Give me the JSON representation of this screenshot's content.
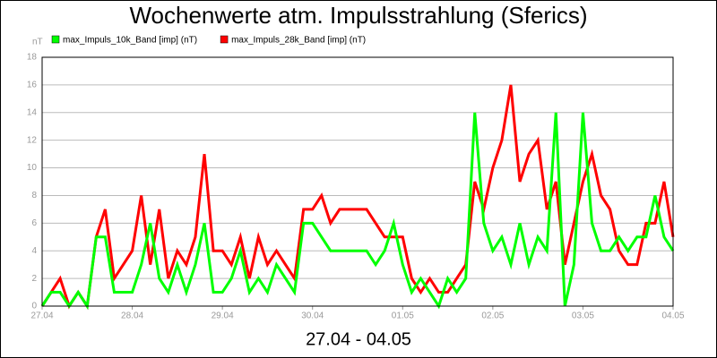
{
  "chart_data": {
    "type": "line",
    "title": "Wochenwerte atm. Impulsstrahlung (Sferics)",
    "x_label": "27.04 - 04.05",
    "y_label": "nT",
    "x": [
      0,
      0.1,
      0.2,
      0.3,
      0.4,
      0.5,
      0.6,
      0.7,
      0.8,
      0.9,
      1,
      1.1,
      1.2,
      1.3,
      1.4,
      1.5,
      1.6,
      1.7,
      1.8,
      1.9,
      2,
      2.1,
      2.2,
      2.3,
      2.4,
      2.5,
      2.6,
      2.7,
      2.8,
      2.9,
      3,
      3.1,
      3.2,
      3.3,
      3.4,
      3.5,
      3.6,
      3.7,
      3.8,
      3.9,
      4,
      4.1,
      4.2,
      4.3,
      4.4,
      4.5,
      4.6,
      4.7,
      4.8,
      4.9,
      5,
      5.1,
      5.2,
      5.3,
      5.4,
      5.5,
      5.6,
      5.7,
      5.8,
      5.9,
      6,
      6.1,
      6.2,
      6.3,
      6.4,
      6.5,
      6.6,
      6.7,
      6.8,
      6.9,
      7
    ],
    "series": [
      {
        "name": "max_Impuls_28k_Band [imp] (nT)",
        "color": "#ff0000",
        "values": [
          0,
          1,
          2,
          0,
          1,
          0,
          5,
          7,
          2,
          3,
          4,
          8,
          3,
          7,
          2,
          4,
          3,
          5,
          11,
          4,
          4,
          3,
          5,
          2,
          5,
          3,
          4,
          3,
          2,
          7,
          7,
          8,
          6,
          7,
          7,
          7,
          7,
          6,
          5,
          5,
          5,
          2,
          1,
          2,
          1,
          1,
          2,
          3,
          9,
          7,
          10,
          12,
          16,
          9,
          11,
          12,
          7,
          9,
          3,
          6,
          9,
          11,
          8,
          7,
          4,
          3,
          3,
          6,
          6,
          9,
          5
        ]
      },
      {
        "name": "max_Impuls_10k_Band [imp] (nT)",
        "color": "#00ff00",
        "values": [
          0,
          1,
          1,
          0,
          1,
          0,
          5,
          5,
          1,
          1,
          1,
          3,
          6,
          2,
          1,
          3,
          1,
          3,
          6,
          1,
          1,
          2,
          4,
          1,
          2,
          1,
          3,
          2,
          1,
          6,
          6,
          5,
          4,
          4,
          4,
          4,
          4,
          3,
          4,
          6,
          3,
          1,
          2,
          1,
          0,
          2,
          1,
          2,
          14,
          6,
          4,
          5,
          3,
          6,
          3,
          5,
          4,
          14,
          0,
          3,
          14,
          6,
          4,
          4,
          5,
          4,
          5,
          5,
          8,
          5,
          4
        ]
      }
    ],
    "legend_order": [
      1,
      0
    ],
    "xlim": [
      0,
      7
    ],
    "xticks": [
      {
        "value": 0,
        "label": "27.04"
      },
      {
        "value": 1,
        "label": "28.04"
      },
      {
        "value": 2,
        "label": "29.04"
      },
      {
        "value": 3,
        "label": "30.04"
      },
      {
        "value": 4,
        "label": "01.05"
      },
      {
        "value": 5,
        "label": "02.05"
      },
      {
        "value": 6,
        "label": "03.05"
      },
      {
        "value": 7,
        "label": "04.05"
      }
    ],
    "ylim": [
      0,
      18
    ],
    "yticks": [
      0,
      2,
      4,
      6,
      8,
      10,
      12,
      14,
      16,
      18
    ],
    "grid": true
  }
}
